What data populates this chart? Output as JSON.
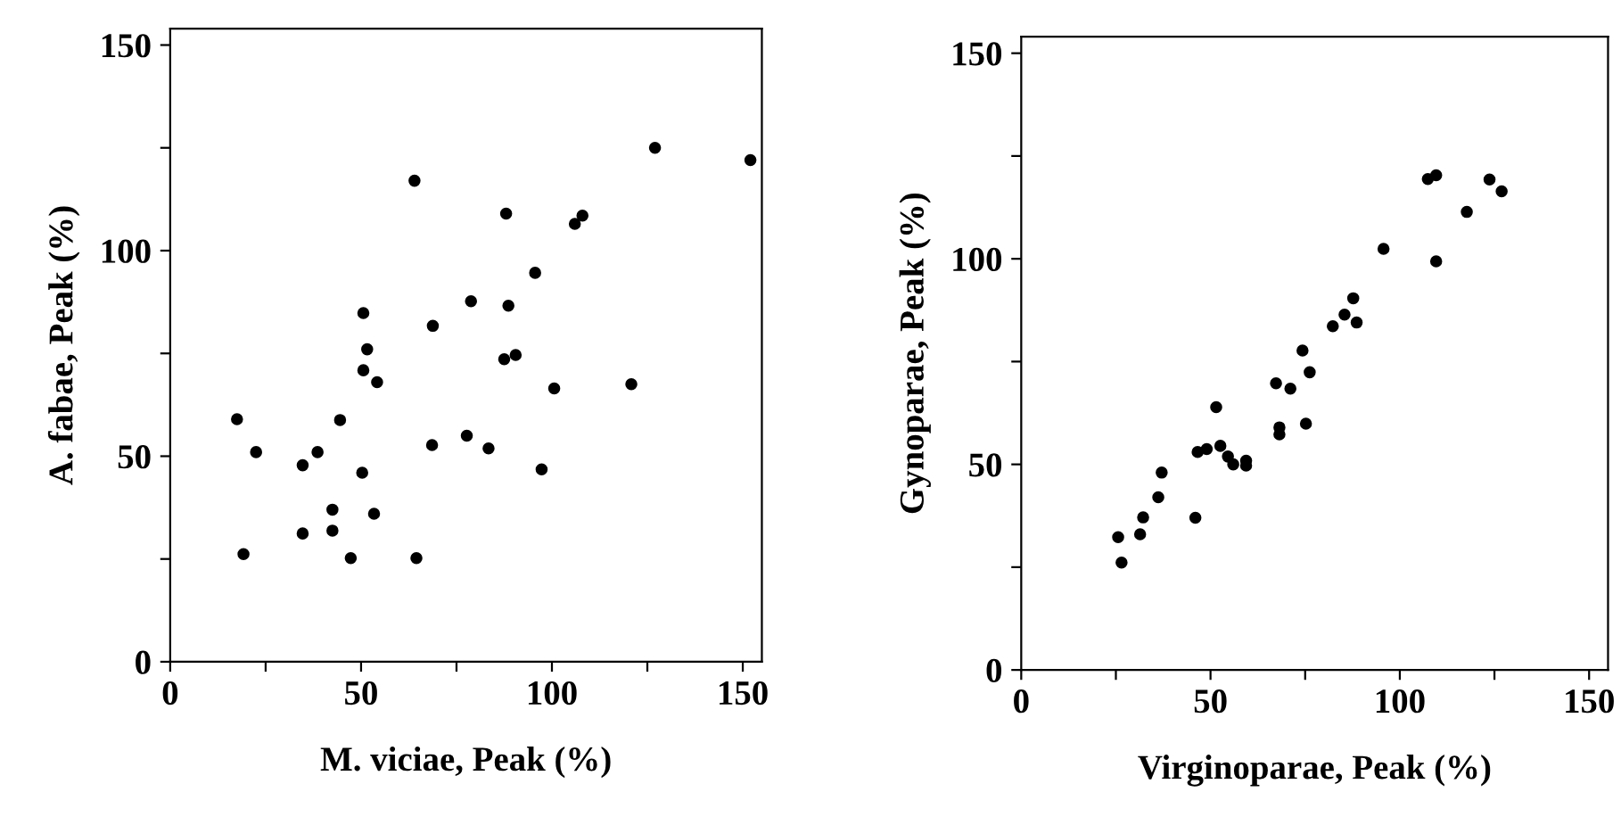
{
  "chart_data": [
    {
      "type": "scatter",
      "xlabel": "M. viciae, Peak (%)",
      "ylabel": "A. fabae, Peak (%)",
      "xlim": [
        0,
        155
      ],
      "ylim": [
        0,
        154
      ],
      "xticks": [
        0,
        {
          "value": 25,
          "label": null
        },
        50,
        {
          "value": 75,
          "label": null
        },
        100,
        {
          "value": 125,
          "label": null
        },
        150
      ],
      "yticks": [
        0,
        {
          "value": 25,
          "label": null
        },
        50,
        {
          "value": 75,
          "label": null
        },
        100,
        {
          "value": 125,
          "label": null
        },
        150
      ],
      "marker": "circle",
      "grid": false,
      "series": [
        {
          "color": "#000000",
          "x": [
            127,
            152,
            64,
            88,
            106,
            108,
            95.6,
            50.6,
            78.8,
            88.6,
            68.8,
            51.6,
            50.6,
            54.2,
            87.5,
            90.5,
            100.6,
            120.8,
            17.5,
            44.5,
            22.5,
            38.6,
            34.7,
            50.3,
            68.6,
            77.7,
            83.4,
            97.3,
            42.5,
            53.4,
            42.5,
            34.7,
            19.2,
            47.3,
            64.5
          ],
          "values": [
            125,
            122,
            117,
            109,
            106.5,
            108.5,
            94.6,
            84.8,
            87.7,
            86.6,
            81.7,
            76,
            70.9,
            68,
            73.6,
            74.6,
            66.5,
            67.5,
            59,
            58.8,
            51,
            51,
            47.8,
            46,
            52.7,
            55,
            51.9,
            46.8,
            37,
            36,
            31.9,
            31.2,
            26.2,
            25.2,
            25.2
          ]
        }
      ]
    },
    {
      "type": "scatter",
      "xlabel": "Virginoparae, Peak (%)",
      "ylabel": "Gynoparae, Peak (%)",
      "xlim": [
        0,
        155
      ],
      "ylim": [
        0,
        154
      ],
      "xticks": [
        0,
        {
          "value": 25,
          "label": null
        },
        50,
        {
          "value": 75,
          "label": null
        },
        100,
        {
          "value": 125,
          "label": null
        },
        150
      ],
      "yticks": [
        0,
        {
          "value": 25,
          "label": null
        },
        50,
        {
          "value": 75,
          "label": null
        },
        100,
        {
          "value": 125,
          "label": null
        },
        150
      ],
      "marker": "circle",
      "grid": false,
      "series": [
        {
          "color": "#000000",
          "x": [
            107.4,
            109.6,
            123.7,
            126.9,
            117.7,
            95.7,
            109.6,
            87.7,
            85.4,
            88.6,
            82.3,
            74.3,
            76.2,
            67.3,
            71.1,
            51.5,
            68.2,
            68.2,
            75.2,
            46.6,
            49,
            52.6,
            54.6,
            56,
            59.4,
            59.4,
            37.1,
            36.2,
            32.2,
            31.4,
            46,
            25.6,
            26.5
          ],
          "values": [
            119.4,
            120.3,
            119.3,
            116.4,
            111.4,
            102.4,
            99.4,
            90.4,
            86.4,
            84.5,
            83.6,
            77.7,
            72.4,
            69.7,
            68.4,
            63.9,
            59,
            57.3,
            59.9,
            53,
            53.7,
            54.5,
            51.9,
            50,
            50.9,
            49.7,
            48,
            42,
            37.1,
            33,
            37,
            32.3,
            26.1
          ]
        }
      ]
    }
  ]
}
